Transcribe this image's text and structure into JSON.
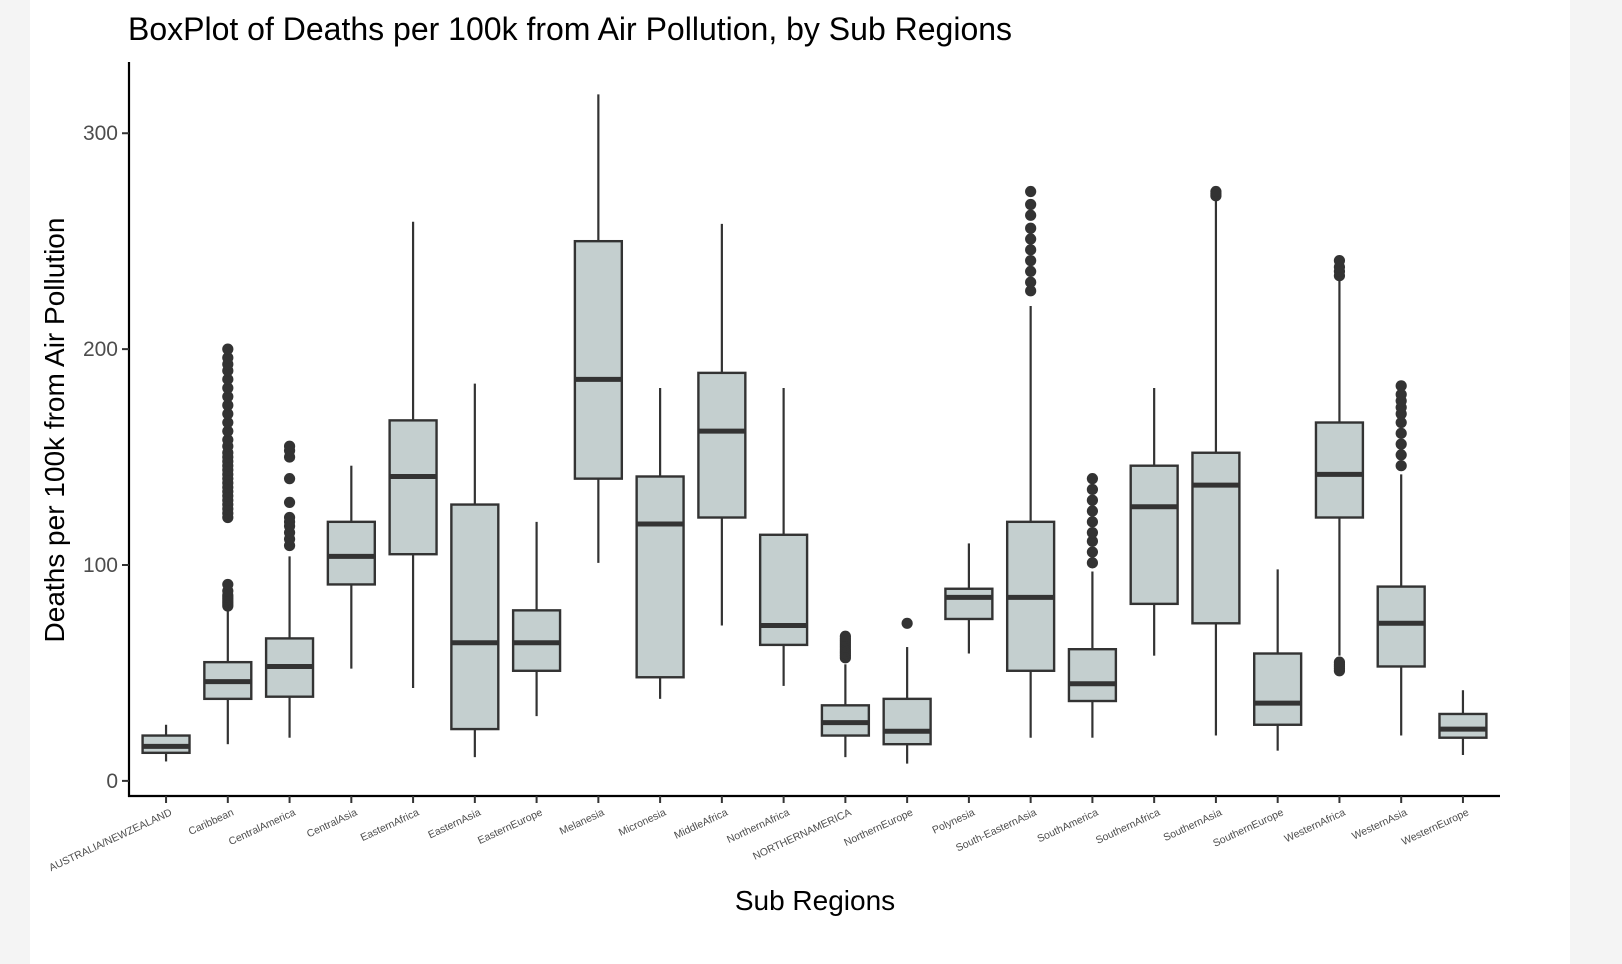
{
  "chart_data": {
    "type": "box",
    "title": "BoxPlot of Deaths per 100k from Air Pollution, by Sub Regions",
    "xlabel": "Sub Regions",
    "ylabel": "Deaths per 100k from Air Pollution",
    "ylim": [
      -7,
      333
    ],
    "yticks": [
      0,
      100,
      200,
      300
    ],
    "grid": false,
    "legend": "none",
    "colors": {
      "box_fill": "#c4cfcf",
      "line": "#333333"
    },
    "categories": [
      "AUSTRALIA/NEWZEALAND",
      "Caribbean",
      "CentralAmerica",
      "CentralAsia",
      "EasternAfrica",
      "EasternAsia",
      "EasternEurope",
      "Melanesia",
      "Micronesia",
      "MiddleAfrica",
      "NorthernAfrica",
      "NORTHERNAMERICA",
      "NorthernEurope",
      "Polynesia",
      "South-EasternAsia",
      "SouthAmerica",
      "SouthernAfrica",
      "SouthernAsia",
      "SouthernEurope",
      "WesternAfrica",
      "WesternAsia",
      "WesternEurope"
    ],
    "boxes": [
      {
        "min": 9,
        "q1": 13,
        "median": 16,
        "q3": 21,
        "max": 26,
        "outliers": []
      },
      {
        "min": 17,
        "q1": 38,
        "median": 46,
        "q3": 55,
        "max": 79,
        "outliers": [
          81,
          82,
          83,
          84,
          85,
          86,
          88,
          91,
          122,
          124,
          126,
          128,
          130,
          132,
          134,
          136,
          138,
          140,
          142,
          144,
          146,
          148,
          150,
          152,
          155,
          158,
          162,
          166,
          170,
          174,
          178,
          182,
          186,
          190,
          193,
          196,
          200
        ]
      },
      {
        "min": 20,
        "q1": 39,
        "median": 53,
        "q3": 66,
        "max": 104,
        "outliers": [
          109,
          112,
          115,
          118,
          120,
          122,
          129,
          140,
          150,
          153,
          155
        ]
      },
      {
        "min": 52,
        "q1": 91,
        "median": 104,
        "q3": 120,
        "max": 146,
        "outliers": []
      },
      {
        "min": 43,
        "q1": 105,
        "median": 141,
        "q3": 167,
        "max": 259,
        "outliers": []
      },
      {
        "min": 11,
        "q1": 24,
        "median": 64,
        "q3": 128,
        "max": 184,
        "outliers": []
      },
      {
        "min": 30,
        "q1": 51,
        "median": 64,
        "q3": 79,
        "max": 120,
        "outliers": []
      },
      {
        "min": 101,
        "q1": 140,
        "median": 186,
        "q3": 250,
        "max": 318,
        "outliers": []
      },
      {
        "min": 38,
        "q1": 48,
        "median": 119,
        "q3": 141,
        "max": 182,
        "outliers": []
      },
      {
        "min": 72,
        "q1": 122,
        "median": 162,
        "q3": 189,
        "max": 258,
        "outliers": []
      },
      {
        "min": 44,
        "q1": 63,
        "median": 72,
        "q3": 114,
        "max": 182,
        "outliers": []
      },
      {
        "min": 11,
        "q1": 21,
        "median": 27,
        "q3": 35,
        "max": 54,
        "outliers": [
          57,
          58,
          59,
          60,
          61,
          62,
          63,
          64,
          65,
          66,
          67
        ]
      },
      {
        "min": 8,
        "q1": 17,
        "median": 23,
        "q3": 38,
        "max": 62,
        "outliers": [
          73
        ]
      },
      {
        "min": 59,
        "q1": 75,
        "median": 85,
        "q3": 89,
        "max": 110,
        "outliers": []
      },
      {
        "min": 20,
        "q1": 51,
        "median": 85,
        "q3": 120,
        "max": 220,
        "outliers": [
          227,
          231,
          236,
          241,
          246,
          251,
          256,
          262,
          267,
          273
        ]
      },
      {
        "min": 20,
        "q1": 37,
        "median": 45,
        "q3": 61,
        "max": 97,
        "outliers": [
          101,
          106,
          111,
          115,
          120,
          125,
          130,
          135,
          140
        ]
      },
      {
        "min": 58,
        "q1": 82,
        "median": 127,
        "q3": 146,
        "max": 182,
        "outliers": []
      },
      {
        "min": 21,
        "q1": 73,
        "median": 137,
        "q3": 152,
        "max": 270,
        "outliers": [
          271,
          272,
          273
        ]
      },
      {
        "min": 14,
        "q1": 26,
        "median": 36,
        "q3": 59,
        "max": 98,
        "outliers": []
      },
      {
        "min": 58,
        "q1": 122,
        "median": 142,
        "q3": 166,
        "max": 232,
        "outliers": [
          51,
          52,
          53,
          54,
          55,
          234,
          236,
          238,
          241
        ]
      },
      {
        "min": 21,
        "q1": 53,
        "median": 73,
        "q3": 90,
        "max": 142,
        "outliers": [
          146,
          151,
          156,
          161,
          166,
          170,
          173,
          176,
          179,
          183
        ]
      },
      {
        "min": 12,
        "q1": 20,
        "median": 24,
        "q3": 31,
        "max": 42,
        "outliers": []
      }
    ]
  }
}
